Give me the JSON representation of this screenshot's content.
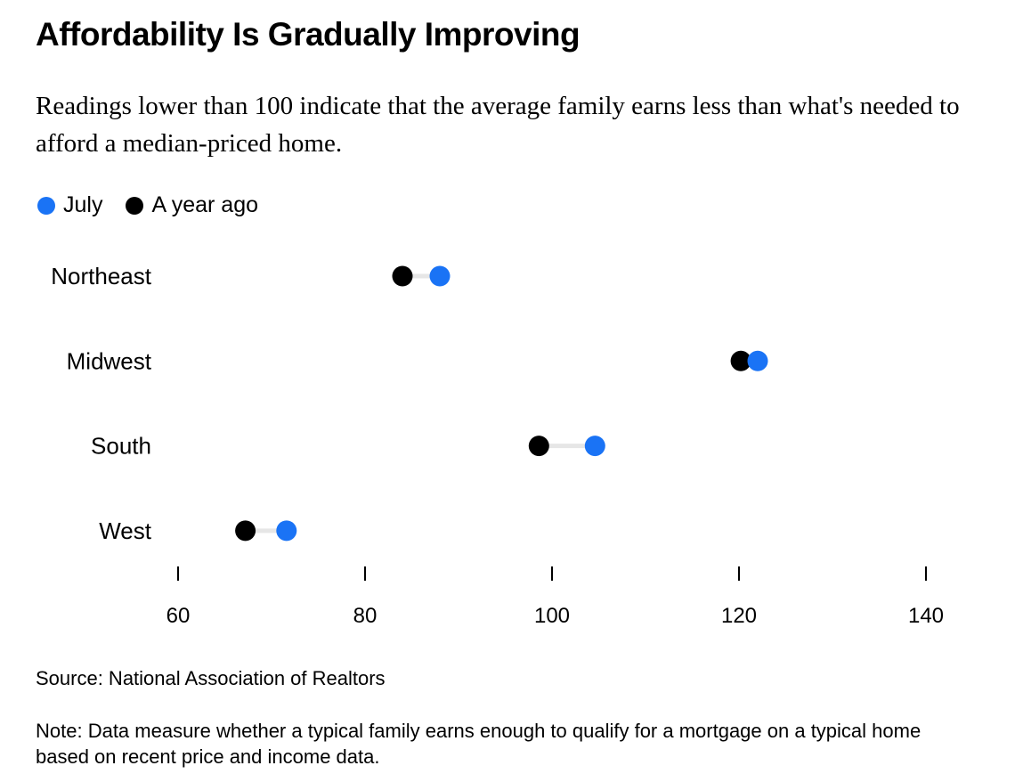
{
  "title": "Affordability Is Gradually Improving",
  "subtitle": "Readings lower than 100 indicate that the average family earns less than what's needed to afford a median-priced home.",
  "source": "Source: National Association of Realtors",
  "note": "Note: Data measure whether a typical family earns enough to qualify for a mortgage on a typical home based on recent price and income data.",
  "colors": {
    "july": "#1a73f5",
    "year_ago": "#000000",
    "connector": "#e6e6e6"
  },
  "chart_data": {
    "type": "scatter",
    "subtype": "dumbbell",
    "title": "Affordability Is Gradually Improving",
    "xlabel": "",
    "ylabel": "",
    "xlim": [
      60,
      140
    ],
    "xticks": [
      60,
      80,
      100,
      120,
      140
    ],
    "legend": {
      "placement": "top-left",
      "entries": [
        "July",
        "A year ago"
      ]
    },
    "categories": [
      "Northeast",
      "Midwest",
      "South",
      "West"
    ],
    "series": [
      {
        "name": "July",
        "values": [
          88.0,
          122.0,
          104.6,
          71.6
        ]
      },
      {
        "name": "A year ago",
        "values": [
          84.0,
          120.2,
          98.6,
          67.2
        ]
      }
    ]
  }
}
